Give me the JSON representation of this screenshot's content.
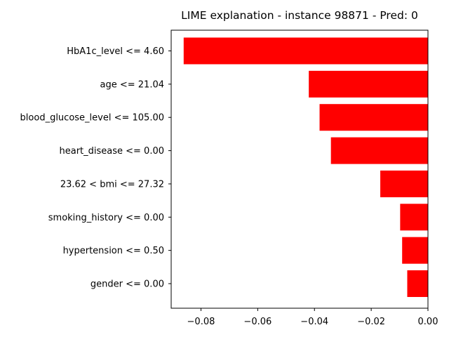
{
  "chart_data": {
    "type": "bar",
    "orientation": "horizontal",
    "title": "LIME explanation - instance 98871 - Pred: 0",
    "xlabel": "",
    "ylabel": "",
    "categories": [
      "HbA1c_level <= 4.60",
      "age <= 21.04",
      "blood_glucose_level <= 105.00",
      "heart_disease <= 0.00",
      "23.62 < bmi <= 27.32",
      "smoking_history <= 0.00",
      "hypertension <= 0.50",
      "gender <= 0.00"
    ],
    "values": [
      -0.0861,
      -0.042,
      -0.0382,
      -0.0342,
      -0.0168,
      -0.0098,
      -0.0091,
      -0.0073
    ],
    "xlim": [
      -0.0905,
      0.0
    ],
    "xticks": [
      -0.08,
      -0.06,
      -0.04,
      -0.02,
      0.0
    ],
    "xtick_labels": [
      "−0.08",
      "−0.06",
      "−0.04",
      "−0.02",
      "0.00"
    ],
    "bar_color": "#ff0000",
    "grid": false,
    "legend": "none"
  }
}
